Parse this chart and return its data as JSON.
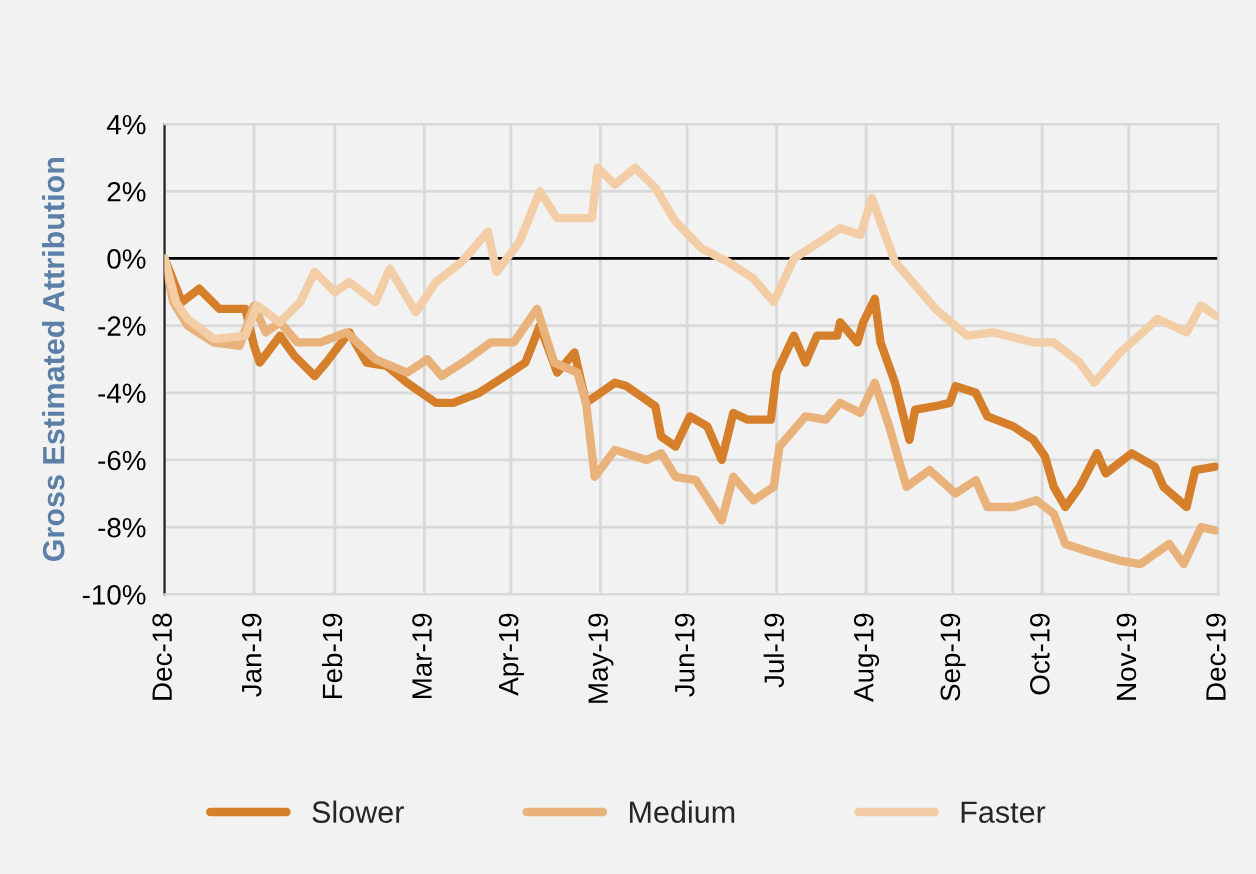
{
  "chart_data": {
    "type": "line",
    "ylabel": "Gross Estimated Attribution",
    "ylim": [
      -10,
      4
    ],
    "yticks": [
      {
        "value": -10,
        "label": "-10%"
      },
      {
        "value": -8,
        "label": "-8%"
      },
      {
        "value": -6,
        "label": "-6%"
      },
      {
        "value": -4,
        "label": "-4%"
      },
      {
        "value": -2,
        "label": "-2%"
      },
      {
        "value": 0,
        "label": "0%"
      },
      {
        "value": 2,
        "label": "2%"
      },
      {
        "value": 4,
        "label": "4%"
      }
    ],
    "xlim": [
      "2018-12-31",
      "2019-12-31"
    ],
    "xticks": [
      {
        "value": "2018-12-31",
        "label": "Dec-18"
      },
      {
        "value": "2019-01-31",
        "label": "Jan-19"
      },
      {
        "value": "2019-02-28",
        "label": "Feb-19"
      },
      {
        "value": "2019-03-31",
        "label": "Mar-19"
      },
      {
        "value": "2019-04-30",
        "label": "Apr-19"
      },
      {
        "value": "2019-05-31",
        "label": "May-19"
      },
      {
        "value": "2019-06-30",
        "label": "Jun-19"
      },
      {
        "value": "2019-07-31",
        "label": "Jul-19"
      },
      {
        "value": "2019-08-31",
        "label": "Aug-19"
      },
      {
        "value": "2019-09-30",
        "label": "Sep-19"
      },
      {
        "value": "2019-10-31",
        "label": "Oct-19"
      },
      {
        "value": "2019-11-30",
        "label": "Nov-19"
      },
      {
        "value": "2019-12-31",
        "label": "Dec-19"
      }
    ],
    "grid": true,
    "legend": "bottom",
    "line_style": "solid",
    "marker": "none",
    "ref_lines": [
      {
        "axis": "y",
        "value": 0,
        "color": "#000000"
      }
    ],
    "series": [
      {
        "name": "Slower",
        "color": "#d57f2a",
        "x": [
          "2018-12-31",
          "2019-01-06",
          "2019-01-12",
          "2019-01-19",
          "2019-01-28",
          "2019-01-31",
          "2019-02-02",
          "2019-02-09",
          "2019-02-14",
          "2019-02-21",
          "2019-02-25",
          "2019-03-05",
          "2019-03-11",
          "2019-03-18",
          "2019-03-25",
          "2019-04-04",
          "2019-04-10",
          "2019-04-19",
          "2019-04-28",
          "2019-05-05",
          "2019-05-10",
          "2019-05-16",
          "2019-05-22",
          "2019-05-26",
          "2019-06-05",
          "2019-06-09",
          "2019-06-19",
          "2019-06-21",
          "2019-06-26",
          "2019-07-01",
          "2019-07-07",
          "2019-07-12",
          "2019-07-16",
          "2019-07-21",
          "2019-07-29",
          "2019-07-31",
          "2019-08-06",
          "2019-08-10",
          "2019-08-14",
          "2019-08-21",
          "2019-08-22",
          "2019-08-28",
          "2019-08-30",
          "2019-09-03",
          "2019-09-05",
          "2019-09-10",
          "2019-09-15",
          "2019-09-17",
          "2019-09-24",
          "2019-09-29",
          "2019-10-01",
          "2019-10-08",
          "2019-10-12",
          "2019-10-21",
          "2019-10-28",
          "2019-11-01",
          "2019-11-04",
          "2019-11-08",
          "2019-11-13",
          "2019-11-19",
          "2019-11-22",
          "2019-12-01",
          "2019-12-09",
          "2019-12-12",
          "2019-12-20",
          "2019-12-23",
          "2019-12-30"
        ],
        "values": [
          0.0,
          -1.3,
          -0.9,
          -1.5,
          -1.5,
          -2.6,
          -3.1,
          -2.3,
          -2.9,
          -3.5,
          -3.1,
          -2.2,
          -3.1,
          -3.2,
          -3.7,
          -4.3,
          -4.3,
          -4.0,
          -3.5,
          -3.1,
          -2.0,
          -3.4,
          -2.8,
          -4.3,
          -3.7,
          -3.8,
          -4.4,
          -5.3,
          -5.6,
          -4.7,
          -5.0,
          -6.0,
          -4.6,
          -4.8,
          -4.8,
          -3.4,
          -2.3,
          -3.1,
          -2.3,
          -2.3,
          -1.9,
          -2.5,
          -1.9,
          -1.2,
          -2.5,
          -3.7,
          -5.4,
          -4.5,
          -4.4,
          -4.3,
          -3.8,
          -4.0,
          -4.7,
          -5.0,
          -5.4,
          -5.9,
          -6.8,
          -7.4,
          -6.8,
          -5.8,
          -6.4,
          -5.8,
          -6.2,
          -6.8,
          -7.4,
          -6.3,
          -6.2
        ]
      },
      {
        "name": "Medium",
        "color": "#e8b27a",
        "x": [
          "2018-12-31",
          "2019-01-03",
          "2019-01-08",
          "2019-01-17",
          "2019-01-26",
          "2019-01-31",
          "2019-02-04",
          "2019-02-09",
          "2019-02-15",
          "2019-02-23",
          "2019-03-04",
          "2019-03-14",
          "2019-03-25",
          "2019-04-01",
          "2019-04-06",
          "2019-04-15",
          "2019-04-23",
          "2019-05-01",
          "2019-05-09",
          "2019-05-15",
          "2019-05-23",
          "2019-05-26",
          "2019-05-29",
          "2019-06-05",
          "2019-06-16",
          "2019-06-21",
          "2019-06-26",
          "2019-07-03",
          "2019-07-12",
          "2019-07-16",
          "2019-07-23",
          "2019-07-30",
          "2019-08-01",
          "2019-08-10",
          "2019-08-17",
          "2019-08-22",
          "2019-08-29",
          "2019-09-03",
          "2019-09-08",
          "2019-09-14",
          "2019-09-22",
          "2019-10-01",
          "2019-10-08",
          "2019-10-12",
          "2019-10-21",
          "2019-10-29",
          "2019-11-04",
          "2019-11-08",
          "2019-11-15",
          "2019-11-27",
          "2019-12-04",
          "2019-12-14",
          "2019-12-19",
          "2019-12-25",
          "2019-12-30"
        ],
        "values": [
          0.0,
          -1.3,
          -2.0,
          -2.5,
          -2.6,
          -1.4,
          -2.2,
          -1.9,
          -2.5,
          -2.5,
          -2.2,
          -3.0,
          -3.4,
          -3.0,
          -3.5,
          -3.0,
          -2.5,
          -2.5,
          -1.5,
          -3.1,
          -3.4,
          -4.3,
          -6.5,
          -5.7,
          -6.0,
          -5.8,
          -6.5,
          -6.6,
          -7.8,
          -6.5,
          -7.2,
          -6.8,
          -5.6,
          -4.7,
          -4.8,
          -4.3,
          -4.6,
          -3.7,
          -5.0,
          -6.8,
          -6.3,
          -7.0,
          -6.6,
          -7.4,
          -7.4,
          -7.2,
          -7.6,
          -8.5,
          -8.7,
          -9.0,
          -9.1,
          -8.5,
          -9.1,
          -8.0,
          -8.1
        ]
      },
      {
        "name": "Faster",
        "color": "#f2cda6",
        "x": [
          "2018-12-31",
          "2019-01-04",
          "2019-01-08",
          "2019-01-17",
          "2019-01-28",
          "2019-02-01",
          "2019-02-09",
          "2019-02-16",
          "2019-02-21",
          "2019-02-28",
          "2019-03-05",
          "2019-03-14",
          "2019-03-19",
          "2019-03-28",
          "2019-04-04",
          "2019-04-13",
          "2019-04-22",
          "2019-04-25",
          "2019-05-03",
          "2019-05-10",
          "2019-05-16",
          "2019-05-28",
          "2019-05-30",
          "2019-06-05",
          "2019-06-12",
          "2019-06-19",
          "2019-06-26",
          "2019-07-05",
          "2019-07-14",
          "2019-07-23",
          "2019-07-30",
          "2019-08-06",
          "2019-08-15",
          "2019-08-22",
          "2019-08-29",
          "2019-09-02",
          "2019-09-10",
          "2019-09-17",
          "2019-09-24",
          "2019-10-05",
          "2019-10-14",
          "2019-10-28",
          "2019-11-04",
          "2019-11-13",
          "2019-11-18",
          "2019-11-27",
          "2019-12-10",
          "2019-12-20",
          "2019-12-25",
          "2019-12-30"
        ],
        "values": [
          0.0,
          -1.3,
          -1.8,
          -2.4,
          -2.3,
          -1.4,
          -1.9,
          -1.3,
          -0.4,
          -1.0,
          -0.7,
          -1.3,
          -0.3,
          -1.6,
          -0.7,
          -0.1,
          0.8,
          -0.4,
          0.5,
          2.0,
          1.2,
          1.2,
          2.7,
          2.2,
          2.7,
          2.1,
          1.1,
          0.3,
          -0.1,
          -0.6,
          -1.3,
          0.0,
          0.5,
          0.9,
          0.7,
          1.8,
          -0.1,
          -0.8,
          -1.5,
          -2.3,
          -2.2,
          -2.5,
          -2.5,
          -3.1,
          -3.7,
          -2.8,
          -1.8,
          -2.2,
          -1.4,
          -1.7
        ]
      }
    ]
  }
}
